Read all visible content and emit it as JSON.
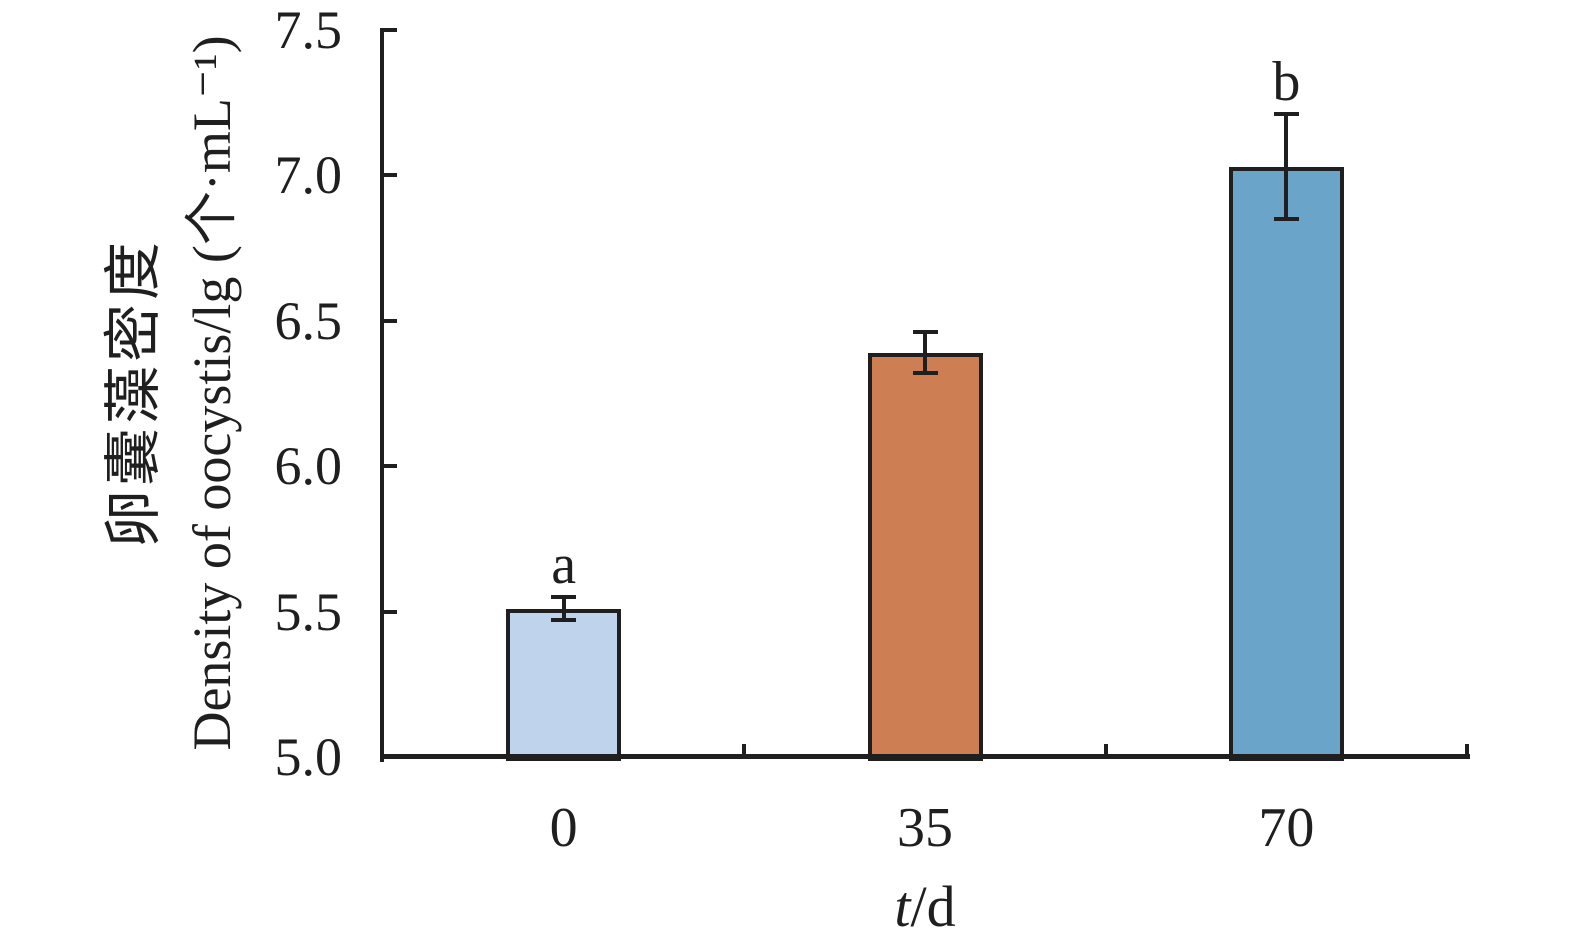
{
  "figure": {
    "background": "#ffffff",
    "y_axis": {
      "label_cn": "卵囊藻密度",
      "label_en": "Density of oocystis/lg (个·mL⁻¹)",
      "tick_labels": [
        "5.0",
        "5.5",
        "6.0",
        "6.5",
        "7.0",
        "7.5"
      ]
    },
    "x_axis": {
      "label_italic": "t",
      "label_rest": "/d",
      "tick_labels": [
        "0",
        "35",
        "70"
      ]
    }
  },
  "chart_data": {
    "type": "bar",
    "title": "",
    "categories": [
      "0",
      "35",
      "70"
    ],
    "values": [
      5.51,
      6.39,
      7.03
    ],
    "error_bars": [
      0.04,
      0.07,
      0.18
    ],
    "significance_letters": [
      "a",
      "",
      "b"
    ],
    "bar_colors": [
      "#bfd4ec",
      "#cd7e52",
      "#6ba4c9"
    ],
    "bar_border_color": "#1f1f1f",
    "axis_color": "#1f1f1f",
    "xlabel": "t/d",
    "ylabel": "卵囊藻密度 Density of oocystis/lg (个·mL⁻¹)",
    "ylim": [
      5.0,
      7.5
    ],
    "yticks": [
      5.0,
      5.5,
      6.0,
      6.5,
      7.0,
      7.5
    ],
    "grid": false,
    "legend": "none"
  }
}
